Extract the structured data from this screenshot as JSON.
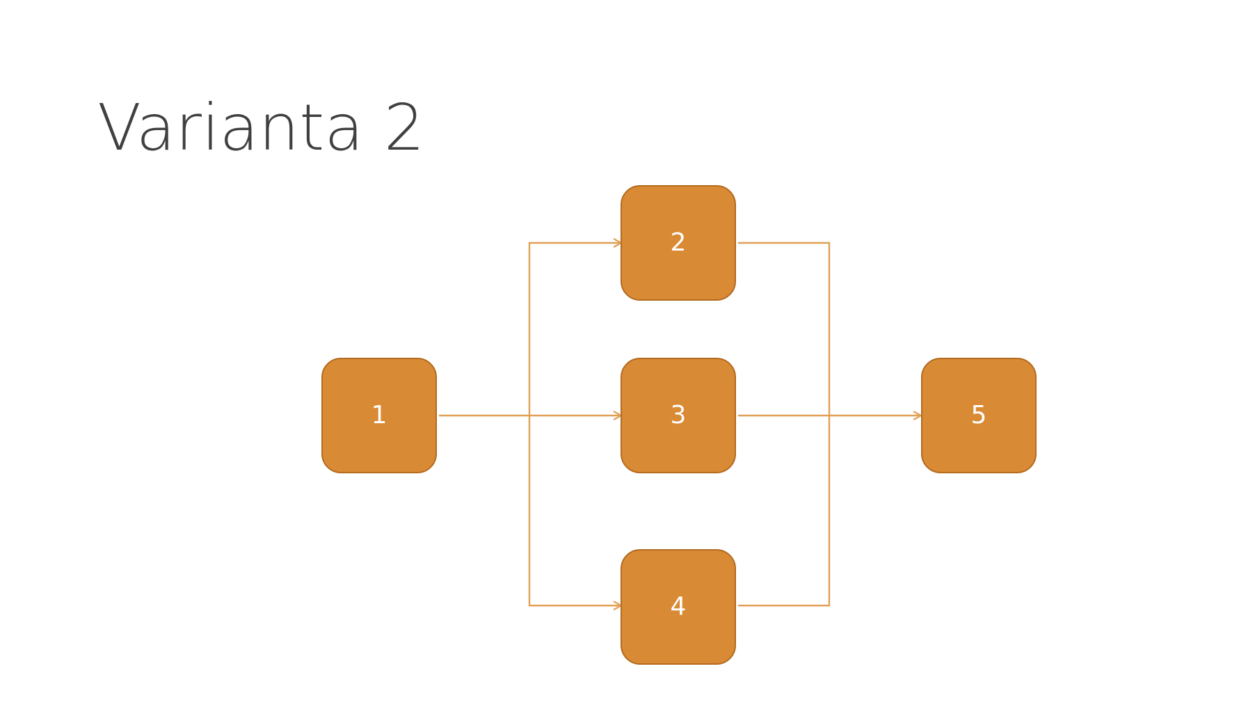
{
  "slide": {
    "title": "Varianta 2"
  },
  "diagram": {
    "nodes": [
      {
        "id": "1",
        "label": "1"
      },
      {
        "id": "2",
        "label": "2"
      },
      {
        "id": "3",
        "label": "3"
      },
      {
        "id": "4",
        "label": "4"
      },
      {
        "id": "5",
        "label": "5"
      }
    ],
    "edges": [
      {
        "from": "1",
        "to": "2"
      },
      {
        "from": "1",
        "to": "3"
      },
      {
        "from": "1",
        "to": "4"
      },
      {
        "from": "2",
        "to": "5"
      },
      {
        "from": "3",
        "to": "5"
      },
      {
        "from": "4",
        "to": "5"
      }
    ],
    "colors": {
      "node_fill": "#d98a35",
      "node_border": "#b36a1e",
      "node_text": "#ffffff",
      "connector": "#e0a055",
      "title_text": "#404040"
    }
  }
}
